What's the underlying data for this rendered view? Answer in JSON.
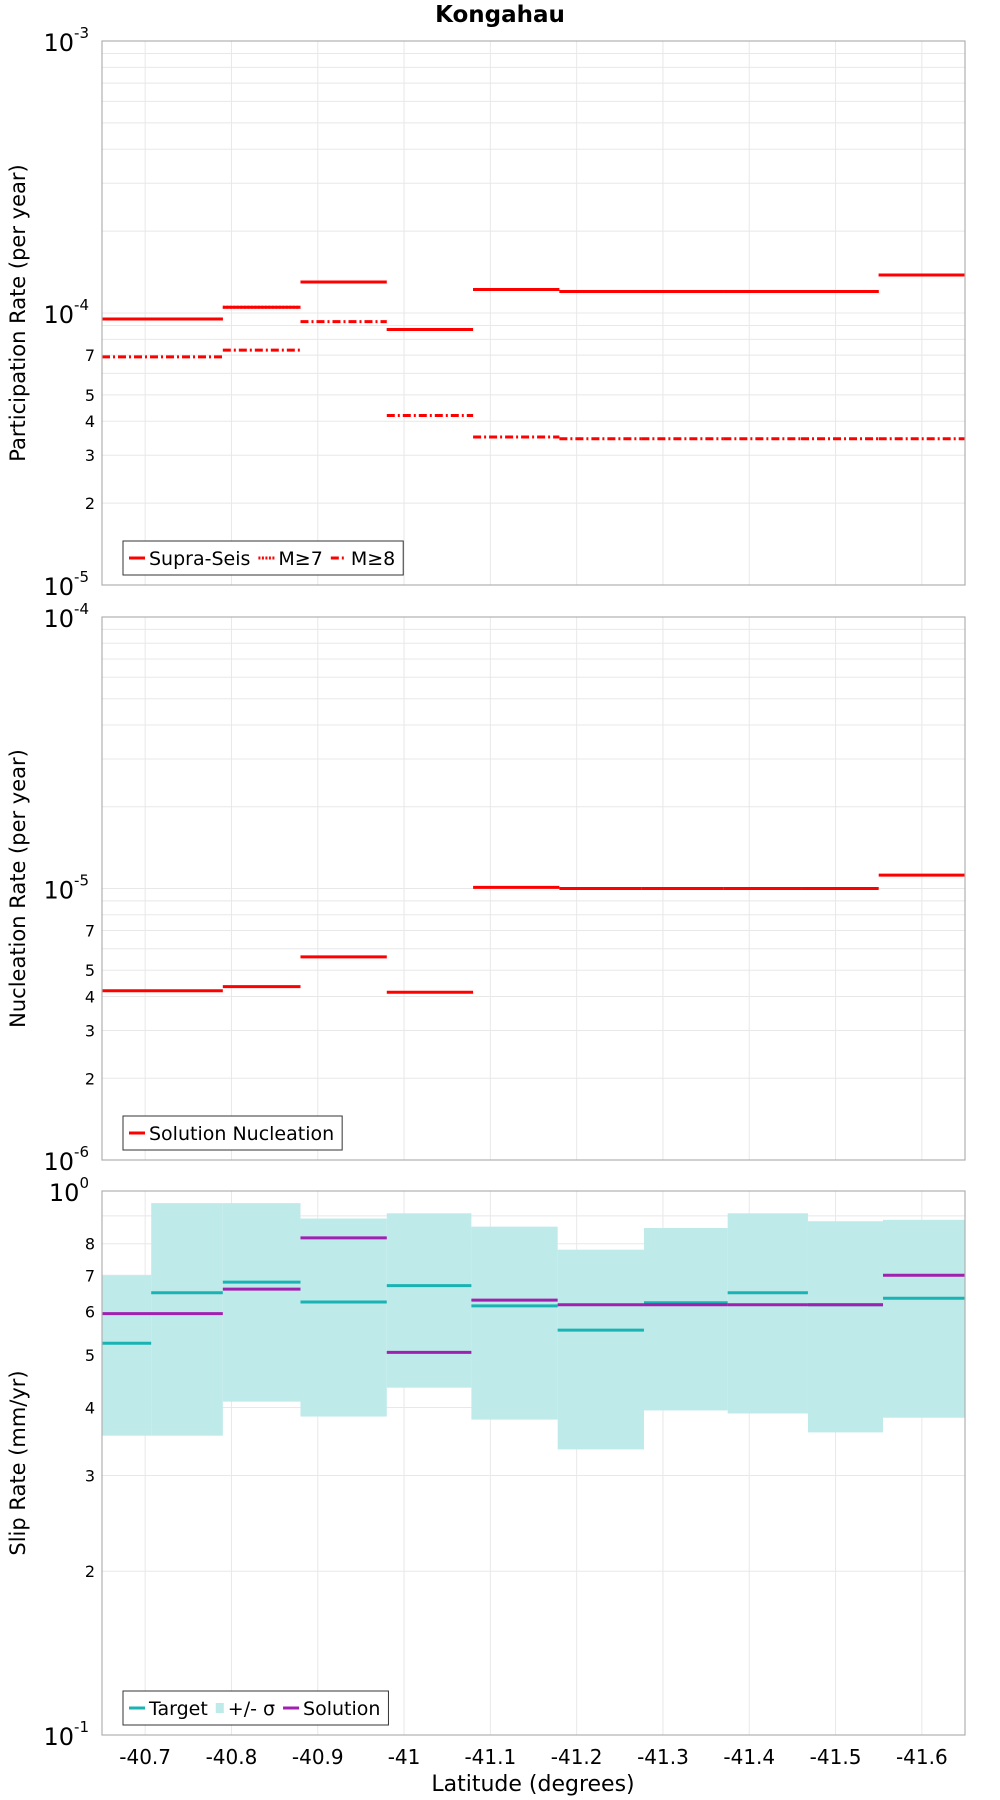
{
  "figure": {
    "title": "Kongahau",
    "xlabel": "Latitude (degrees)",
    "x_ticks": [
      "-40.7",
      "-40.8",
      "-40.9",
      "-41",
      "-41.1",
      "-41.2",
      "-41.3",
      "-41.4",
      "-41.5",
      "-41.6"
    ],
    "colors": {
      "red": "#ff0000",
      "teal": "#1ab3b3",
      "band": "#bfeaea",
      "purple": "#a020b0",
      "grid": "#e8e8e8",
      "frame": "#b0b0b0"
    }
  },
  "chart_data": [
    {
      "type": "line",
      "title": "Kongahau",
      "ylabel": "Participation Rate (per year)",
      "yscale": "log",
      "ylim": [
        1e-05,
        0.001
      ],
      "xlim": [
        -40.65,
        -41.65
      ],
      "x_ticks": [
        -40.7,
        -40.8,
        -40.9,
        -41.0,
        -41.1,
        -41.2,
        -41.3,
        -41.4,
        -41.5,
        -41.6
      ],
      "y_major_labels": [
        {
          "base": "10",
          "exp": "-5"
        },
        {
          "base": "10",
          "exp": "-4"
        },
        {
          "base": "10",
          "exp": "-3"
        }
      ],
      "y_minor_labels": [
        "2",
        "3",
        "4",
        "5",
        "7"
      ],
      "legend": {
        "position": "bottom-left",
        "entries": [
          {
            "label": "Supra-Seis",
            "style": "solid"
          },
          {
            "label": "M≥7",
            "style": "dotted"
          },
          {
            "label": "M≥8",
            "style": "dashdot"
          }
        ]
      },
      "series": [
        {
          "name": "Supra-Seis",
          "style": "solid",
          "color": "#ff0000",
          "segments": [
            {
              "x0": -40.65,
              "x1": -40.79,
              "y": 9.5e-05
            },
            {
              "x0": -40.79,
              "x1": -40.88,
              "y": 0.000105
            },
            {
              "x0": -40.88,
              "x1": -40.98,
              "y": 0.00013
            },
            {
              "x0": -40.98,
              "x1": -41.08,
              "y": 8.7e-05
            },
            {
              "x0": -41.08,
              "x1": -41.18,
              "y": 0.000122
            },
            {
              "x0": -41.18,
              "x1": -41.275,
              "y": 0.00012
            },
            {
              "x0": -41.275,
              "x1": -41.37,
              "y": 0.00012
            },
            {
              "x0": -41.37,
              "x1": -41.46,
              "y": 0.00012
            },
            {
              "x0": -41.46,
              "x1": -41.55,
              "y": 0.00012
            },
            {
              "x0": -41.55,
              "x1": -41.65,
              "y": 0.000138
            }
          ]
        },
        {
          "name": "M≥7",
          "style": "dotted",
          "color": "#ff0000",
          "segments": [
            {
              "x0": -40.65,
              "x1": -40.79,
              "y": 9.5e-05
            },
            {
              "x0": -40.79,
              "x1": -40.88,
              "y": 0.000105
            },
            {
              "x0": -40.88,
              "x1": -40.98,
              "y": 0.00013
            },
            {
              "x0": -40.98,
              "x1": -41.08,
              "y": 8.7e-05
            },
            {
              "x0": -41.08,
              "x1": -41.18,
              "y": 0.000122
            },
            {
              "x0": -41.18,
              "x1": -41.275,
              "y": 0.00012
            },
            {
              "x0": -41.275,
              "x1": -41.37,
              "y": 0.00012
            },
            {
              "x0": -41.37,
              "x1": -41.46,
              "y": 0.00012
            },
            {
              "x0": -41.46,
              "x1": -41.55,
              "y": 0.00012
            },
            {
              "x0": -41.55,
              "x1": -41.65,
              "y": 0.000138
            }
          ]
        },
        {
          "name": "M≥8",
          "style": "dashdot",
          "color": "#ff0000",
          "segments": [
            {
              "x0": -40.65,
              "x1": -40.79,
              "y": 6.9e-05
            },
            {
              "x0": -40.79,
              "x1": -40.88,
              "y": 7.3e-05
            },
            {
              "x0": -40.88,
              "x1": -40.98,
              "y": 9.3e-05
            },
            {
              "x0": -40.98,
              "x1": -41.08,
              "y": 4.2e-05
            },
            {
              "x0": -41.08,
              "x1": -41.18,
              "y": 3.5e-05
            },
            {
              "x0": -41.18,
              "x1": -41.275,
              "y": 3.45e-05
            },
            {
              "x0": -41.275,
              "x1": -41.37,
              "y": 3.45e-05
            },
            {
              "x0": -41.37,
              "x1": -41.46,
              "y": 3.45e-05
            },
            {
              "x0": -41.46,
              "x1": -41.55,
              "y": 3.45e-05
            },
            {
              "x0": -41.55,
              "x1": -41.65,
              "y": 3.45e-05
            }
          ]
        }
      ]
    },
    {
      "type": "line",
      "ylabel": "Nucleation Rate (per year)",
      "yscale": "log",
      "ylim": [
        1e-06,
        0.0001
      ],
      "xlim": [
        -40.65,
        -41.65
      ],
      "x_ticks": [
        -40.7,
        -40.8,
        -40.9,
        -41.0,
        -41.1,
        -41.2,
        -41.3,
        -41.4,
        -41.5,
        -41.6
      ],
      "y_major_labels": [
        {
          "base": "10",
          "exp": "-6"
        },
        {
          "base": "10",
          "exp": "-5"
        },
        {
          "base": "10",
          "exp": "-4"
        }
      ],
      "y_minor_labels": [
        "2",
        "3",
        "4",
        "5",
        "7"
      ],
      "legend": {
        "position": "bottom-left",
        "entries": [
          {
            "label": "Solution Nucleation",
            "style": "solid"
          }
        ]
      },
      "series": [
        {
          "name": "Solution Nucleation",
          "style": "solid",
          "color": "#ff0000",
          "segments": [
            {
              "x0": -40.65,
              "x1": -40.79,
              "y": 4.2e-06
            },
            {
              "x0": -40.79,
              "x1": -40.88,
              "y": 4.35e-06
            },
            {
              "x0": -40.88,
              "x1": -40.98,
              "y": 5.6e-06
            },
            {
              "x0": -40.98,
              "x1": -41.08,
              "y": 4.15e-06
            },
            {
              "x0": -41.08,
              "x1": -41.18,
              "y": 1.01e-05
            },
            {
              "x0": -41.18,
              "x1": -41.275,
              "y": 1e-05
            },
            {
              "x0": -41.275,
              "x1": -41.37,
              "y": 1e-05
            },
            {
              "x0": -41.37,
              "x1": -41.46,
              "y": 1e-05
            },
            {
              "x0": -41.46,
              "x1": -41.55,
              "y": 1e-05
            },
            {
              "x0": -41.55,
              "x1": -41.65,
              "y": 1.12e-05
            }
          ]
        }
      ]
    },
    {
      "type": "line",
      "ylabel": "Slip Rate (mm/yr)",
      "yscale": "log",
      "ylim": [
        0.1,
        1.0
      ],
      "xlim": [
        -40.65,
        -41.65
      ],
      "x_ticks": [
        -40.7,
        -40.8,
        -40.9,
        -41.0,
        -41.1,
        -41.2,
        -41.3,
        -41.4,
        -41.5,
        -41.6
      ],
      "y_major_labels": [
        {
          "base": "10",
          "exp": "-1"
        },
        {
          "base": "10",
          "exp": "0"
        }
      ],
      "y_minor_labels": [
        "2",
        "3",
        "4",
        "5",
        "6",
        "7",
        "8"
      ],
      "legend": {
        "position": "bottom-left",
        "entries": [
          {
            "label": "Target",
            "style": "solid"
          },
          {
            "label": "+/- σ",
            "style": "band"
          },
          {
            "label": "Solution",
            "style": "solid"
          }
        ]
      },
      "band": {
        "name": "+/- σ",
        "color": "#bfeaea",
        "segments": [
          {
            "x0": -40.65,
            "x1": -40.707,
            "lo": 0.355,
            "hi": 0.7
          },
          {
            "x0": -40.707,
            "x1": -40.79,
            "lo": 0.355,
            "hi": 0.95
          },
          {
            "x0": -40.79,
            "x1": -40.88,
            "lo": 0.41,
            "hi": 0.95
          },
          {
            "x0": -40.88,
            "x1": -40.98,
            "lo": 0.385,
            "hi": 0.89
          },
          {
            "x0": -40.98,
            "x1": -41.078,
            "lo": 0.435,
            "hi": 0.91
          },
          {
            "x0": -41.078,
            "x1": -41.178,
            "lo": 0.38,
            "hi": 0.86
          },
          {
            "x0": -41.178,
            "x1": -41.278,
            "lo": 0.335,
            "hi": 0.78
          },
          {
            "x0": -41.278,
            "x1": -41.375,
            "lo": 0.395,
            "hi": 0.855
          },
          {
            "x0": -41.375,
            "x1": -41.468,
            "lo": 0.39,
            "hi": 0.91
          },
          {
            "x0": -41.468,
            "x1": -41.555,
            "lo": 0.36,
            "hi": 0.88
          },
          {
            "x0": -41.555,
            "x1": -41.65,
            "lo": 0.383,
            "hi": 0.885
          }
        ]
      },
      "series": [
        {
          "name": "Target",
          "style": "solid",
          "color": "#1ab3b3",
          "segments": [
            {
              "x0": -40.65,
              "x1": -40.707,
              "y": 0.525
            },
            {
              "x0": -40.707,
              "x1": -40.79,
              "y": 0.65
            },
            {
              "x0": -40.79,
              "x1": -40.88,
              "y": 0.68
            },
            {
              "x0": -40.88,
              "x1": -40.98,
              "y": 0.625
            },
            {
              "x0": -40.98,
              "x1": -41.078,
              "y": 0.67
            },
            {
              "x0": -41.078,
              "x1": -41.178,
              "y": 0.615
            },
            {
              "x0": -41.178,
              "x1": -41.278,
              "y": 0.555
            },
            {
              "x0": -41.278,
              "x1": -41.375,
              "y": 0.623
            },
            {
              "x0": -41.375,
              "x1": -41.468,
              "y": 0.65
            },
            {
              "x0": -41.468,
              "x1": -41.555,
              "y": 0.618
            },
            {
              "x0": -41.555,
              "x1": -41.65,
              "y": 0.635
            }
          ]
        },
        {
          "name": "Solution",
          "style": "solid",
          "color": "#a020b0",
          "segments": [
            {
              "x0": -40.65,
              "x1": -40.79,
              "y": 0.595
            },
            {
              "x0": -40.79,
              "x1": -40.88,
              "y": 0.66
            },
            {
              "x0": -40.88,
              "x1": -40.98,
              "y": 0.82
            },
            {
              "x0": -40.98,
              "x1": -41.078,
              "y": 0.505
            },
            {
              "x0": -41.078,
              "x1": -41.178,
              "y": 0.63
            },
            {
              "x0": -41.178,
              "x1": -41.278,
              "y": 0.618
            },
            {
              "x0": -41.278,
              "x1": -41.375,
              "y": 0.618
            },
            {
              "x0": -41.375,
              "x1": -41.468,
              "y": 0.618
            },
            {
              "x0": -41.468,
              "x1": -41.555,
              "y": 0.618
            },
            {
              "x0": -41.555,
              "x1": -41.65,
              "y": 0.7
            }
          ]
        }
      ]
    }
  ]
}
